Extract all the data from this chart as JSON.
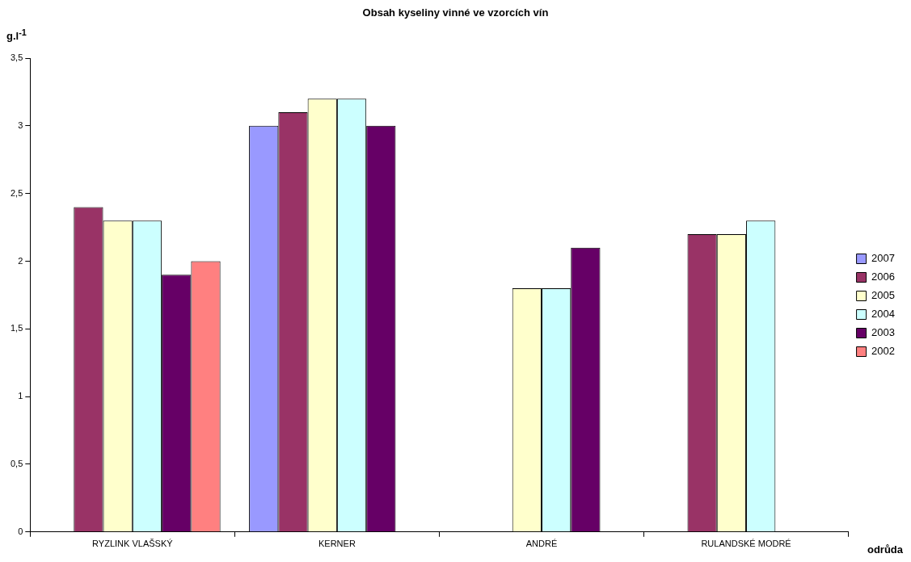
{
  "chart_data": {
    "type": "bar",
    "title": "Obsah kyseliny vinné ve vzorcích vín",
    "xlabel": "odrůda",
    "ylabel": "g.l$^{-1}$",
    "categories": [
      "RYZLINK VLAŠSKÝ",
      "KERNER",
      "ANDRÉ",
      "RULANDSKÉ MODRÉ"
    ],
    "series": [
      {
        "name": "2007",
        "color": "#9999ff",
        "values": [
          null,
          3.0,
          null,
          null
        ]
      },
      {
        "name": "2006",
        "color": "#993366",
        "values": [
          2.4,
          3.1,
          null,
          2.2
        ]
      },
      {
        "name": "2005",
        "color": "#ffffcc",
        "values": [
          2.3,
          3.2,
          1.8,
          2.2
        ]
      },
      {
        "name": "2004",
        "color": "#ccffff",
        "values": [
          2.3,
          3.2,
          1.8,
          2.3
        ]
      },
      {
        "name": "2003",
        "color": "#660066",
        "values": [
          1.9,
          3.0,
          2.1,
          null
        ]
      },
      {
        "name": "2002",
        "color": "#ff8080",
        "values": [
          2.0,
          null,
          null,
          null
        ]
      }
    ],
    "ylim": [
      0,
      3.5
    ],
    "yticks": [
      0,
      {
        "value": 0.5,
        "label": "0,5"
      },
      1,
      {
        "value": 1.5,
        "label": "1,5"
      },
      2,
      {
        "value": 2.5,
        "label": "2,5"
      },
      3,
      {
        "value": 3.5,
        "label": "3,5"
      }
    ],
    "grid": false,
    "legend": "right"
  }
}
